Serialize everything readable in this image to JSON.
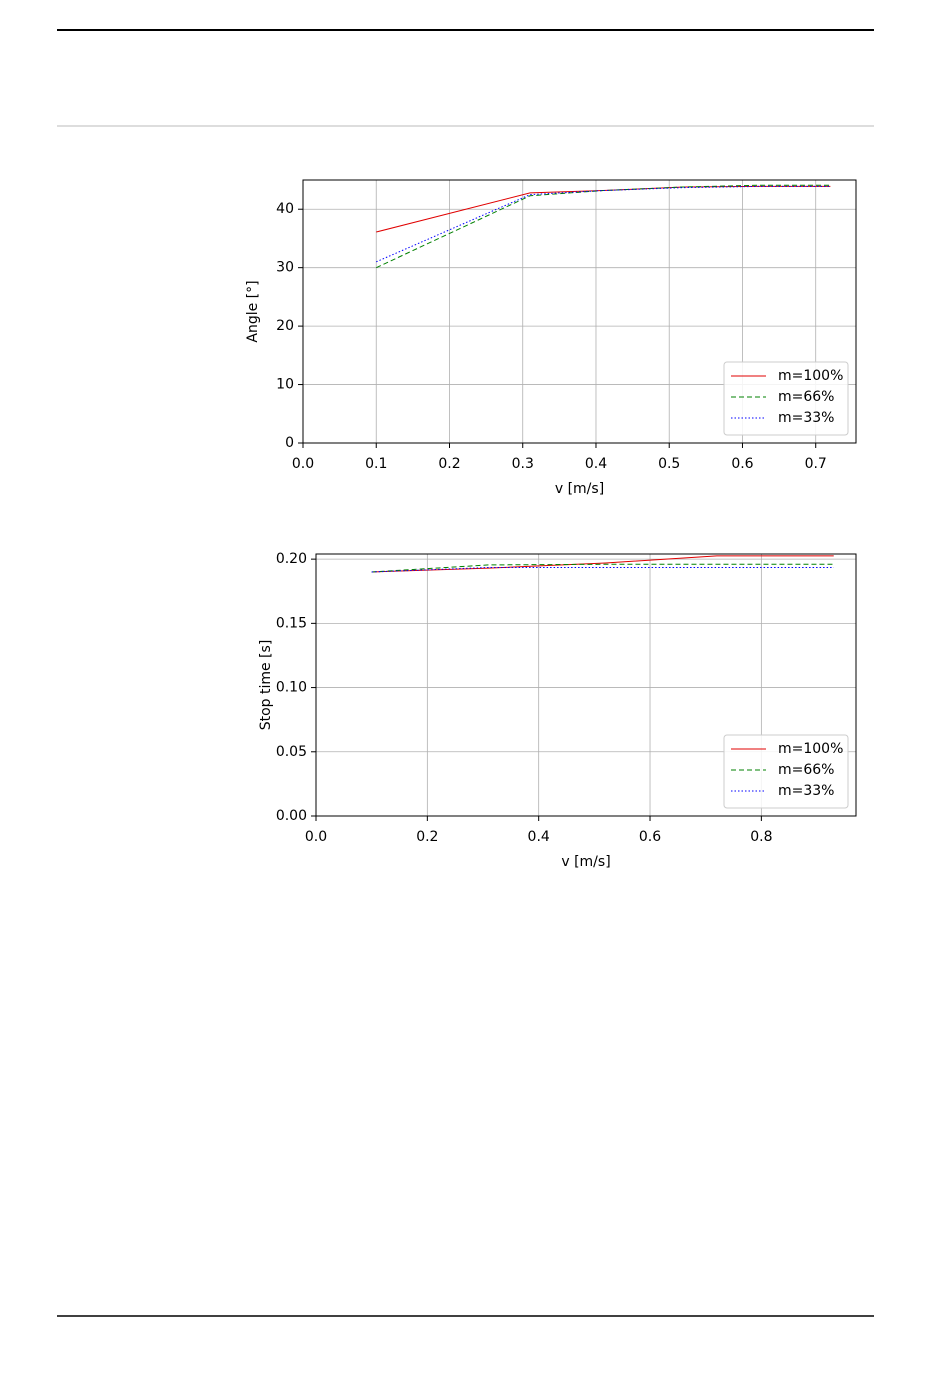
{
  "chart_data": [
    {
      "type": "line",
      "xlabel": "v [m/s]",
      "ylabel": "Angle [°]",
      "x": [
        0.1,
        0.31,
        0.41,
        0.52,
        0.62,
        0.72
      ],
      "series": [
        {
          "name": "m=100%",
          "color": "#e00000",
          "linestyle": "solid",
          "values": [
            36.1,
            42.8,
            43.2,
            43.8,
            43.9,
            43.9
          ]
        },
        {
          "name": "m=66%",
          "color": "#008000",
          "linestyle": "dashed",
          "values": [
            30.0,
            42.3,
            43.2,
            43.8,
            44.1,
            44.1
          ]
        },
        {
          "name": "m=33%",
          "color": "#0000ff",
          "linestyle": "dotted",
          "values": [
            31.0,
            42.5,
            43.2,
            43.7,
            43.9,
            43.9
          ]
        }
      ],
      "xlim": [
        0,
        0.755
      ],
      "ylim": [
        0,
        45
      ],
      "xticks": [
        {
          "value": 0,
          "label": "0.0"
        },
        0.1,
        0.2,
        0.3,
        0.4,
        0.5,
        0.6,
        0.7
      ],
      "yticks": [
        0,
        10,
        20,
        30,
        40
      ],
      "grid": true,
      "legend": "lower right"
    },
    {
      "type": "line",
      "xlabel": "v [m/s]",
      "ylabel": "Stop time [s]",
      "x": [
        0.1,
        0.31,
        0.52,
        0.72,
        0.93
      ],
      "series": [
        {
          "name": "m=100%",
          "color": "#e00000",
          "linestyle": "solid",
          "values": [
            0.19,
            0.193,
            0.197,
            0.2025,
            0.2025
          ]
        },
        {
          "name": "m=66%",
          "color": "#008000",
          "linestyle": "dashed",
          "values": [
            0.19,
            0.1955,
            0.196,
            0.196,
            0.196
          ]
        },
        {
          "name": "m=33%",
          "color": "#0000ff",
          "linestyle": "dotted",
          "values": [
            0.19,
            0.1935,
            0.1935,
            0.1935,
            0.1935
          ]
        }
      ],
      "xlim": [
        0,
        0.97
      ],
      "ylim": [
        0,
        0.204
      ],
      "xticks": [
        {
          "value": 0,
          "label": "0.0"
        },
        0.2,
        0.4,
        0.6,
        0.8
      ],
      "yticks": [
        {
          "value": 0,
          "label": "0.00"
        },
        0.05,
        {
          "value": 0.1,
          "label": "0.10"
        },
        0.15,
        {
          "value": 0.2,
          "label": "0.20"
        }
      ],
      "grid": true,
      "legend": "lower right"
    }
  ]
}
